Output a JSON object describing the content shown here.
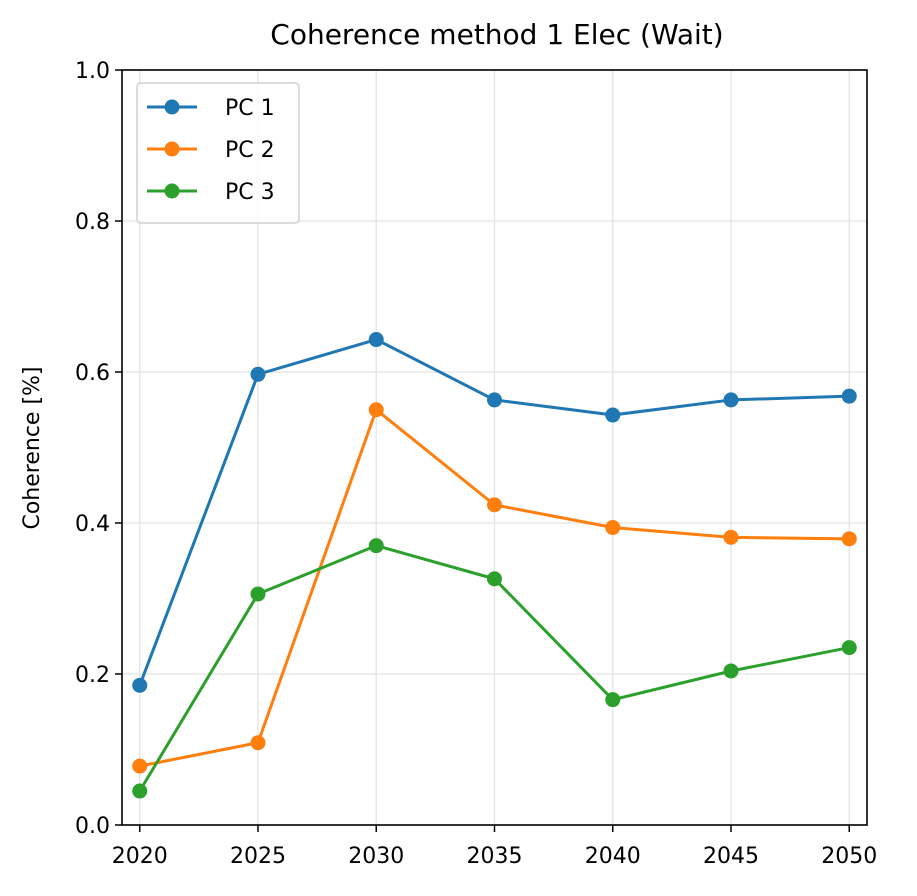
{
  "chart_data": {
    "type": "line",
    "title": "Coherence method 1 Elec (Wait)",
    "xlabel": "",
    "ylabel": "Coherence [%]",
    "x": [
      2020,
      2025,
      2030,
      2035,
      2040,
      2045,
      2050
    ],
    "xticks": [
      "2020",
      "2025",
      "2030",
      "2035",
      "2040",
      "2045",
      "2050"
    ],
    "xlim": [
      2019.25,
      2050.75
    ],
    "ylim": [
      0.0,
      1.0
    ],
    "yticks": [
      "0.0",
      "0.2",
      "0.4",
      "0.6",
      "0.8",
      "1.0"
    ],
    "grid": true,
    "legend": "top-left",
    "markers": true,
    "series": [
      {
        "name": "PC 1",
        "color": "#1f77b4",
        "values": [
          0.185,
          0.597,
          0.643,
          0.563,
          0.543,
          0.563,
          0.568
        ]
      },
      {
        "name": "PC 2",
        "color": "#ff7f0e",
        "values": [
          0.078,
          0.109,
          0.55,
          0.424,
          0.394,
          0.381,
          0.379
        ]
      },
      {
        "name": "PC 3",
        "color": "#2ca02c",
        "values": [
          0.045,
          0.306,
          0.37,
          0.326,
          0.166,
          0.204,
          0.235
        ]
      }
    ]
  }
}
